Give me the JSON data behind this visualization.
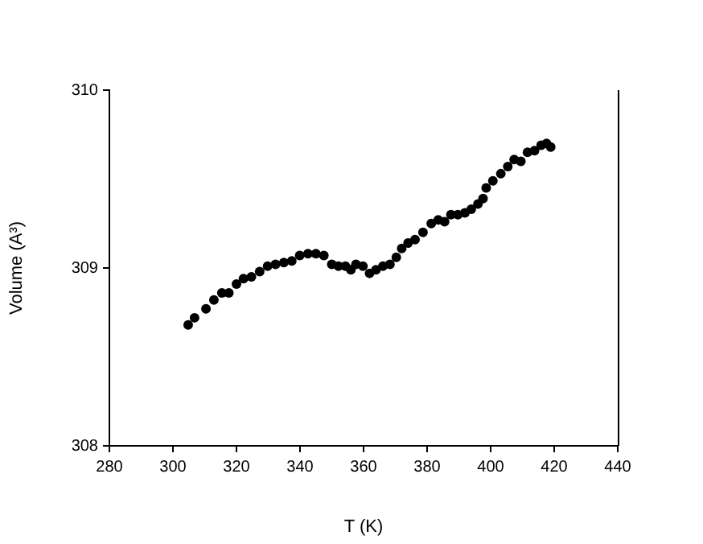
{
  "chart_data": {
    "type": "scatter",
    "xlabel": "T (K)",
    "ylabel": "Volume (A³)",
    "marker": "circle",
    "grid": false,
    "legend": false,
    "xlim": [
      280,
      440
    ],
    "xticks": [
      280,
      300,
      320,
      340,
      360,
      380,
      400,
      420,
      440
    ],
    "ylim": [
      308,
      310
    ],
    "yticks": [
      308,
      309,
      310
    ],
    "series": [
      {
        "color": "#000000",
        "x": [
          304.8,
          306.8,
          310.4,
          312.9,
          315.4,
          317.6,
          320.0,
          322.2,
          324.7,
          327.3,
          329.8,
          332.3,
          334.9,
          337.4,
          339.9,
          342.5,
          345.0,
          347.5,
          350.0,
          352.1,
          354.3,
          356.0,
          357.6,
          359.8,
          361.9,
          363.9,
          366.1,
          368.3,
          370.3,
          372.0,
          374.0,
          376.2,
          378.7,
          381.3,
          383.5,
          385.5,
          387.5,
          389.7,
          391.9,
          393.9,
          396.0,
          397.6,
          398.6,
          400.7,
          403.2,
          405.4,
          407.4,
          409.5,
          411.6,
          413.8,
          415.9,
          417.6,
          418.9
        ],
        "values": [
          308.68,
          308.72,
          308.77,
          308.82,
          308.86,
          308.86,
          308.91,
          308.94,
          308.95,
          308.98,
          309.01,
          309.02,
          309.03,
          309.04,
          309.07,
          309.08,
          309.08,
          309.07,
          309.02,
          309.01,
          309.01,
          308.99,
          309.02,
          309.01,
          308.97,
          308.99,
          309.01,
          309.02,
          309.06,
          309.11,
          309.14,
          309.16,
          309.2,
          309.25,
          309.27,
          309.26,
          309.3,
          309.3,
          309.31,
          309.33,
          309.36,
          309.39,
          309.45,
          309.49,
          309.53,
          309.57,
          309.61,
          309.6,
          309.65,
          309.66,
          309.69,
          309.7,
          309.68
        ]
      }
    ]
  }
}
